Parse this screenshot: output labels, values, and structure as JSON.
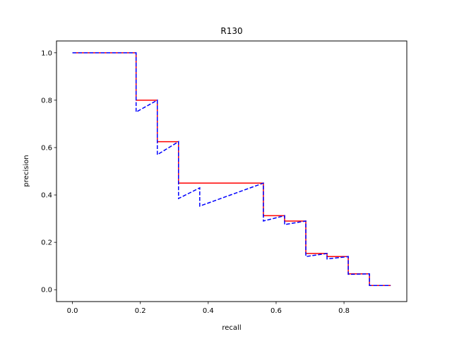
{
  "chart_data": {
    "type": "line",
    "title": "R130",
    "xlabel": "recall",
    "ylabel": "precision",
    "xlim": [
      -0.047,
      0.985
    ],
    "ylim": [
      -0.05,
      1.05
    ],
    "xticks": [
      0.0,
      0.2,
      0.4,
      0.6,
      0.8
    ],
    "xtick_labels": [
      "0.0",
      "0.2",
      "0.4",
      "0.6",
      "0.8"
    ],
    "yticks": [
      0.0,
      0.2,
      0.4,
      0.6,
      0.8,
      1.0
    ],
    "ytick_labels": [
      "0.0",
      "0.2",
      "0.4",
      "0.6",
      "0.8",
      "1.0"
    ],
    "grid": false,
    "series": [
      {
        "color": "#ff0000",
        "style": "solid",
        "x": [
          0.0,
          0.1875,
          0.1875,
          0.25,
          0.25,
          0.3125,
          0.3125,
          0.5625,
          0.5625,
          0.625,
          0.625,
          0.6875,
          0.6875,
          0.75,
          0.75,
          0.8125,
          0.8125,
          0.875,
          0.875,
          0.9375
        ],
        "y": [
          1.0,
          1.0,
          0.8,
          0.8,
          0.625,
          0.625,
          0.45,
          0.45,
          0.3125,
          0.3125,
          0.29,
          0.29,
          0.153,
          0.153,
          0.14,
          0.14,
          0.067,
          0.067,
          0.018,
          0.018
        ]
      },
      {
        "color": "#0000ff",
        "style": "dashed",
        "x": [
          0.0,
          0.1875,
          0.1875,
          0.25,
          0.25,
          0.3125,
          0.3125,
          0.375,
          0.375,
          0.5625,
          0.5625,
          0.625,
          0.625,
          0.6875,
          0.6875,
          0.75,
          0.75,
          0.8125,
          0.8125,
          0.875,
          0.875,
          0.9375
        ],
        "y": [
          1.0,
          1.0,
          0.75,
          0.8,
          0.57,
          0.625,
          0.385,
          0.43,
          0.353,
          0.45,
          0.29,
          0.3125,
          0.275,
          0.29,
          0.14,
          0.153,
          0.13,
          0.14,
          0.065,
          0.067,
          0.018,
          0.018
        ]
      }
    ]
  }
}
